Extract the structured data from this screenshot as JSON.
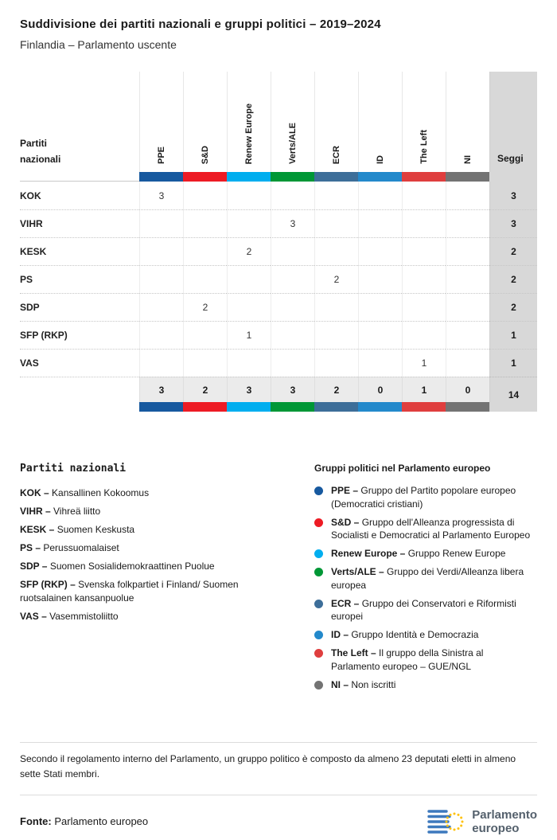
{
  "header": {
    "title": "Suddivisione dei partiti nazionali e gruppi politici – 2019–2024",
    "subtitle": "Finlandia – Parlamento uscente"
  },
  "table": {
    "row_header_lines": [
      "Partiti",
      "nazionali"
    ],
    "seats_label": "Seggi",
    "groups": [
      {
        "label": "PPE",
        "color": "#17599f"
      },
      {
        "label": "S&D",
        "color": "#ed1b24"
      },
      {
        "label": "Renew Europe",
        "color": "#00aeef"
      },
      {
        "label": "Verts/ALE",
        "color": "#009736"
      },
      {
        "label": "ECR",
        "color": "#3d6e99"
      },
      {
        "label": "ID",
        "color": "#2389cb"
      },
      {
        "label": "The Left",
        "color": "#df3e3e"
      },
      {
        "label": "NI",
        "color": "#737373"
      }
    ],
    "rows": [
      {
        "party": "KOK",
        "values": [
          "3",
          "",
          "",
          "",
          "",
          "",
          "",
          ""
        ],
        "seats": "3"
      },
      {
        "party": "VIHR",
        "values": [
          "",
          "",
          "",
          "3",
          "",
          "",
          "",
          ""
        ],
        "seats": "3"
      },
      {
        "party": "KESK",
        "values": [
          "",
          "",
          "2",
          "",
          "",
          "",
          "",
          ""
        ],
        "seats": "2"
      },
      {
        "party": "PS",
        "values": [
          "",
          "",
          "",
          "",
          "2",
          "",
          "",
          ""
        ],
        "seats": "2"
      },
      {
        "party": "SDP",
        "values": [
          "",
          "2",
          "",
          "",
          "",
          "",
          "",
          ""
        ],
        "seats": "2"
      },
      {
        "party": "SFP (RKP)",
        "values": [
          "",
          "",
          "1",
          "",
          "",
          "",
          "",
          ""
        ],
        "seats": "1"
      },
      {
        "party": "VAS",
        "values": [
          "",
          "",
          "",
          "",
          "",
          "",
          "1",
          ""
        ],
        "seats": "1"
      }
    ],
    "totals": {
      "values": [
        "3",
        "2",
        "3",
        "3",
        "2",
        "0",
        "1",
        "0"
      ],
      "seats": "14"
    }
  },
  "chart_data": {
    "type": "table",
    "title": "Suddivisione dei partiti nazionali e gruppi politici – 2019–2024",
    "subtitle": "Finlandia – Parlamento uscente",
    "columns": [
      "PPE",
      "S&D",
      "Renew Europe",
      "Verts/ALE",
      "ECR",
      "ID",
      "The Left",
      "NI"
    ],
    "parties": [
      "KOK",
      "VIHR",
      "KESK",
      "PS",
      "SDP",
      "SFP (RKP)",
      "VAS"
    ],
    "values": [
      [
        3,
        null,
        null,
        null,
        null,
        null,
        null,
        null
      ],
      [
        null,
        null,
        null,
        3,
        null,
        null,
        null,
        null
      ],
      [
        null,
        null,
        2,
        null,
        null,
        null,
        null,
        null
      ],
      [
        null,
        null,
        null,
        null,
        2,
        null,
        null,
        null
      ],
      [
        null,
        2,
        null,
        null,
        null,
        null,
        null,
        null
      ],
      [
        null,
        null,
        1,
        null,
        null,
        null,
        null,
        null
      ],
      [
        null,
        null,
        null,
        null,
        null,
        null,
        1,
        null
      ]
    ],
    "row_seats": [
      3,
      3,
      2,
      2,
      2,
      1,
      1
    ],
    "column_totals": [
      3,
      2,
      3,
      3,
      2,
      0,
      1,
      0
    ],
    "total_seats": 14
  },
  "legend_parties": {
    "title": "Partiti nazionali",
    "items": [
      {
        "abbr": "KOK",
        "name": "Kansallinen Kokoomus"
      },
      {
        "abbr": "VIHR",
        "name": "Vihreä liitto"
      },
      {
        "abbr": "KESK",
        "name": "Suomen Keskusta"
      },
      {
        "abbr": "PS",
        "name": "Perussuomalaiset"
      },
      {
        "abbr": "SDP",
        "name": "Suomen Sosialidemokraattinen Puolue"
      },
      {
        "abbr": "SFP (RKP)",
        "name": "Svenska folkpartiet i Finland/ Suomen ruotsalainen kansanpuolue"
      },
      {
        "abbr": "VAS",
        "name": "Vasemmistoliitto"
      }
    ]
  },
  "legend_groups": {
    "title": "Gruppi politici nel Parlamento europeo",
    "items": [
      {
        "abbr": "PPE",
        "name": "Gruppo del Partito popolare europeo (Democratici cristiani)",
        "color": "#17599f"
      },
      {
        "abbr": "S&D",
        "name": "Gruppo dell'Alleanza progressista di Socialisti e Democratici al Parlamento Europeo",
        "color": "#ed1b24"
      },
      {
        "abbr": "Renew Europe",
        "name": "Gruppo Renew Europe",
        "color": "#00aeef"
      },
      {
        "abbr": "Verts/ALE",
        "name": "Gruppo dei Verdi/Alleanza libera europea",
        "color": "#009736"
      },
      {
        "abbr": "ECR",
        "name": "Gruppo dei Conservatori e Riformisti europei",
        "color": "#3d6e99"
      },
      {
        "abbr": "ID",
        "name": "Gruppo Identità e Democrazia",
        "color": "#2389cb"
      },
      {
        "abbr": "The Left",
        "name": "Il gruppo della Sinistra al Parlamento europeo – GUE/NGL",
        "color": "#df3e3e"
      },
      {
        "abbr": "NI",
        "name": "Non iscritti",
        "color": "#737373"
      }
    ]
  },
  "footer": {
    "note": "Secondo il regolamento interno del Parlamento, un gruppo politico è composto da almeno 23 deputati eletti in almeno sette Stati membri.",
    "source_label": "Fonte:",
    "source_value": "Parlamento europeo",
    "logo_line1": "Parlamento",
    "logo_line2": "europeo"
  }
}
